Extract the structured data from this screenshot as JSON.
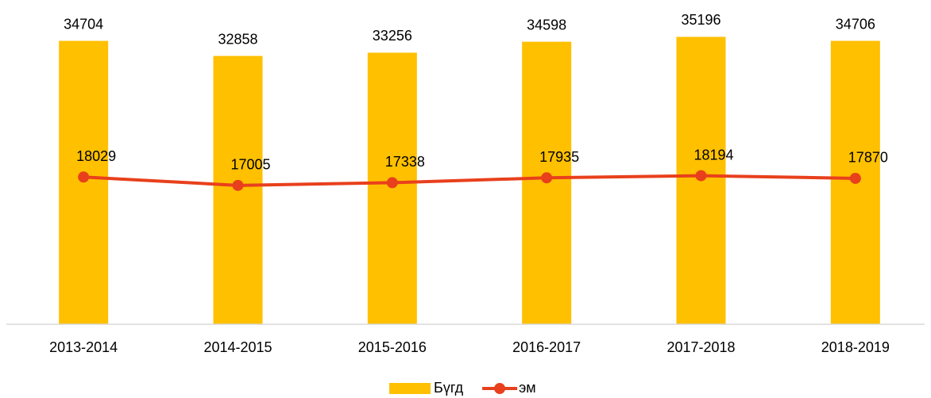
{
  "chart_data": {
    "type": "combo",
    "categories": [
      "2013-2014",
      "2014-2015",
      "2015-2016",
      "2016-2017",
      "2017-2018",
      "2018-2019"
    ],
    "series": [
      {
        "name": "Бүгд",
        "type": "bar",
        "color": "#ffc000",
        "values": [
          34704,
          32858,
          33256,
          34598,
          35196,
          34706
        ]
      },
      {
        "name": "эм",
        "type": "line",
        "color": "#e8401c",
        "values": [
          18029,
          17005,
          17338,
          17935,
          18194,
          17870
        ]
      }
    ],
    "ylim": [
      0,
      40000
    ],
    "legend": "bottom"
  }
}
